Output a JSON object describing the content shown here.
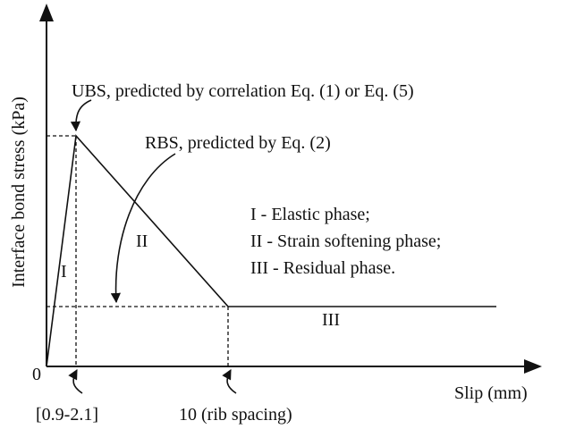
{
  "axis": {
    "origin": "0",
    "y_label": "Interface bond stress (kPa)",
    "x_label": "Slip (mm)",
    "peak_slip": "[0.9-2.1]",
    "residual_slip": "10 (rib spacing)"
  },
  "annotations": {
    "ubs": "UBS, predicted by correlation Eq. (1) or Eq. (5)",
    "rbs": "RBS, predicted by Eq. (2)"
  },
  "phases": {
    "one": "I",
    "two": "II",
    "three": "III"
  },
  "legend": [
    "I - Elastic phase;",
    "II - Strain softening phase;",
    "III - Residual phase."
  ]
}
